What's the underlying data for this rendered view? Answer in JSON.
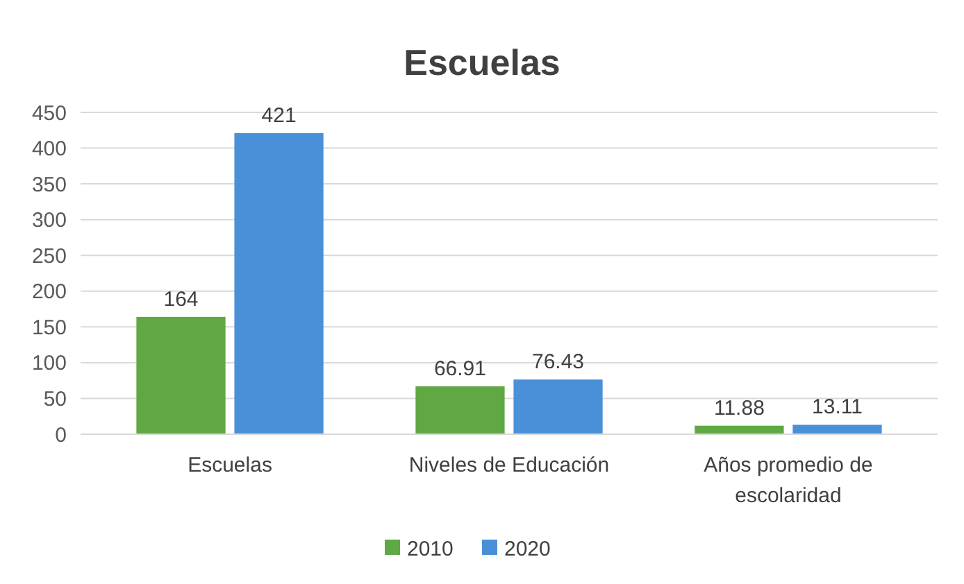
{
  "chart_data": {
    "type": "bar",
    "title": "Escuelas",
    "categories": [
      "Escuelas",
      "Niveles de Educación",
      "Años promedio de escolaridad"
    ],
    "series": [
      {
        "name": "2010",
        "color": "#5fa843",
        "values": [
          164,
          66.91,
          11.88
        ]
      },
      {
        "name": "2020",
        "color": "#4a90d9",
        "values": [
          421,
          76.43,
          13.11
        ]
      }
    ],
    "ylim": [
      0,
      450
    ],
    "yticks": [
      0,
      50,
      100,
      150,
      200,
      250,
      300,
      350,
      400,
      450
    ],
    "grid": "y",
    "legend": "bottom",
    "data_labels": true
  }
}
